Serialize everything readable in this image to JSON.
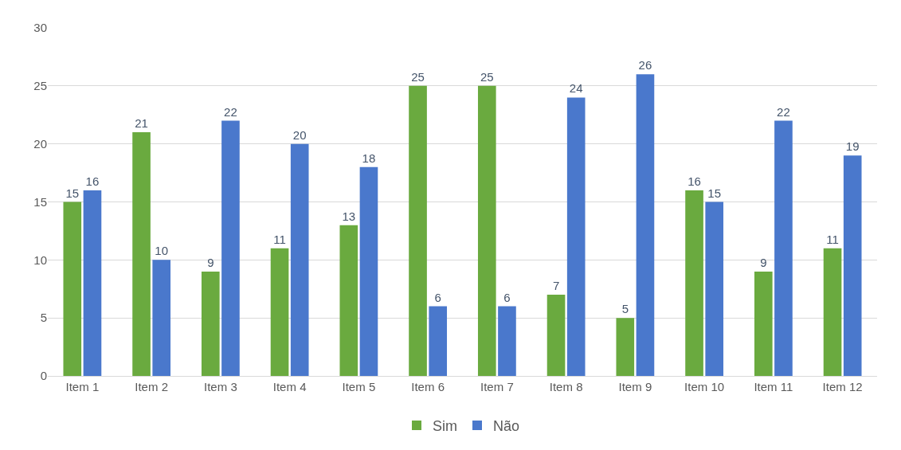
{
  "chart_data": {
    "type": "bar",
    "categories": [
      "Item 1",
      "Item 2",
      "Item 3",
      "Item 4",
      "Item 5",
      "Item 6",
      "Item 7",
      "Item 8",
      "Item 9",
      "Item 10",
      "Item 11",
      "Item 12"
    ],
    "series": [
      {
        "name": "Sim",
        "color": "#6aaa3f",
        "values": [
          15,
          21,
          9,
          11,
          13,
          25,
          25,
          7,
          5,
          16,
          9,
          11
        ]
      },
      {
        "name": "Não",
        "color": "#4a78cc",
        "values": [
          16,
          10,
          22,
          20,
          18,
          6,
          6,
          24,
          26,
          15,
          22,
          19
        ]
      }
    ],
    "ylim": [
      0,
      30
    ],
    "yticks": [
      0,
      5,
      10,
      15,
      20,
      25,
      30
    ],
    "grid": "y",
    "legend": "bottom",
    "data_labels": true
  }
}
